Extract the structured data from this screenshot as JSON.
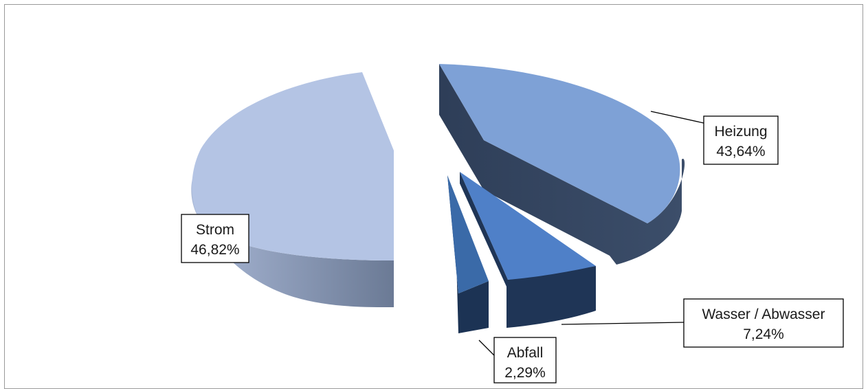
{
  "chart_data": {
    "type": "pie",
    "style": "3d-exploded",
    "title": "",
    "series": [
      {
        "name": "",
        "slices": [
          {
            "label": "Strom",
            "value": 46.82,
            "value_text": "46,82%",
            "color": "#b4c4e4"
          },
          {
            "label": "Heizung",
            "value": 43.64,
            "value_text": "43,64%",
            "color": "#7ea1d6"
          },
          {
            "label": "Wasser / Abwasser",
            "value": 7.24,
            "value_text": "7,24%",
            "color": "#4f80c8"
          },
          {
            "label": "Abfall",
            "value": 2.29,
            "value_text": "2,29%",
            "color": "#3a6aa8"
          }
        ]
      }
    ],
    "legend": "none",
    "data_labels": "outside-with-leader-lines"
  }
}
